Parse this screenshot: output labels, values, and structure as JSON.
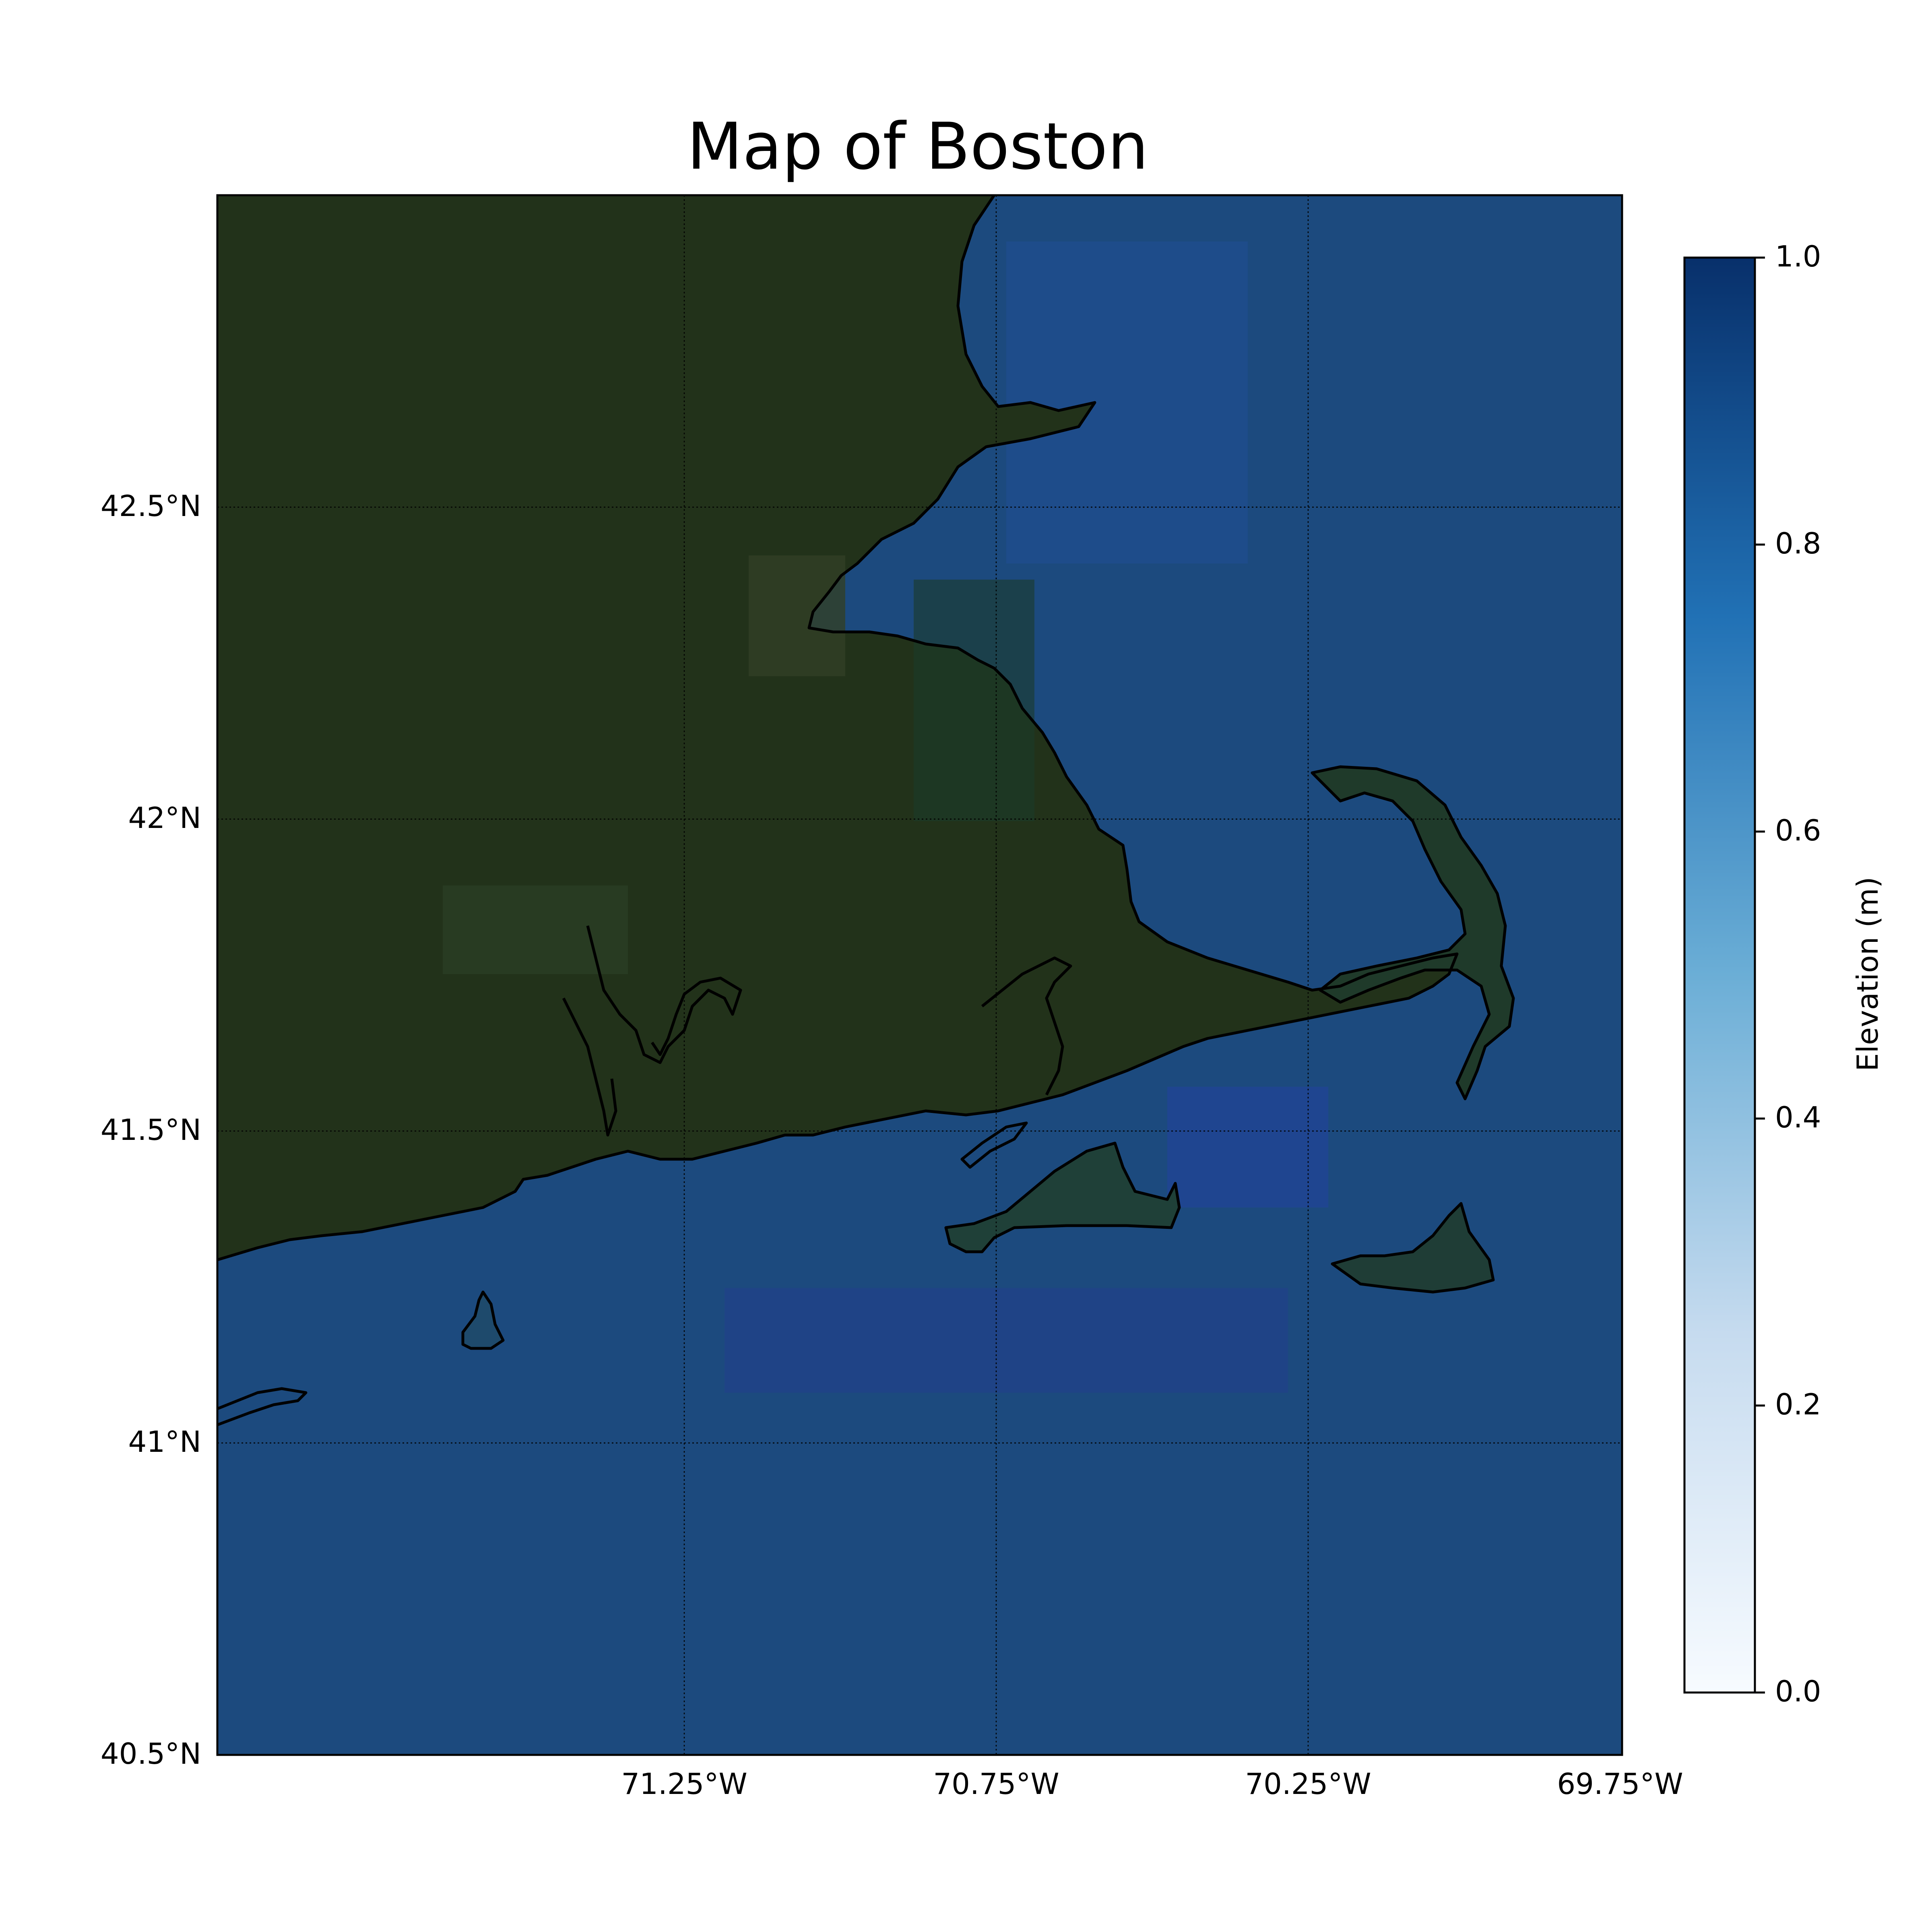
{
  "title": "Map of Boston",
  "map": {
    "extent": {
      "lon": [
        -71.75,
        -69.75
      ],
      "lat": [
        40.5,
        42.5
      ]
    },
    "meridians": [
      -71.25,
      -70.75,
      -70.25
    ],
    "parallels": [
      42.5,
      42.0,
      41.5,
      41.0
    ],
    "lat_labels": [
      "42.5°N",
      "42°N",
      "41.5°N",
      "41°N",
      "40.5°N"
    ],
    "lon_labels": [
      "71.25°W",
      "70.75°W",
      "70.25°W",
      "69.75°W"
    ],
    "land_color": "#22321a",
    "water_color": "#1c4a7e",
    "coast_color": "#000000"
  },
  "colorbar": {
    "label": "Elevation (m)",
    "ticks": [
      "1.0",
      "0.8",
      "0.6",
      "0.4",
      "0.2",
      "0.0"
    ],
    "min": 0.0,
    "max": 1.0,
    "colormap": "Blues",
    "color_low": "#f7fbff",
    "color_mid": "#6baed6",
    "color_high": "#08306b"
  }
}
